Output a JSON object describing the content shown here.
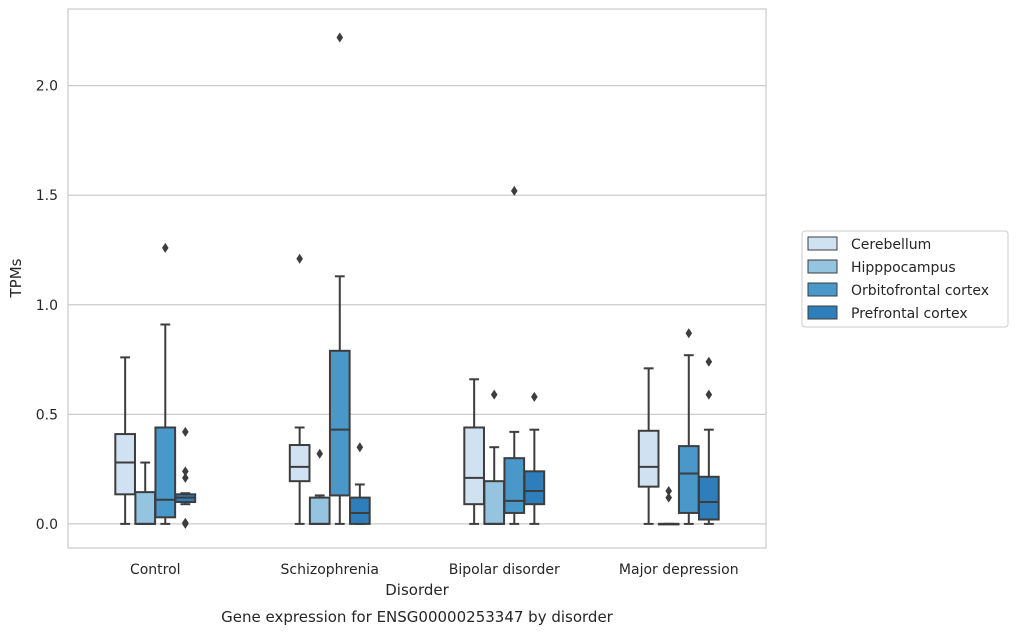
{
  "chart_data": {
    "type": "box",
    "caption": "Gene expression for ENSG00000253347 by disorder",
    "xlabel": "Disorder",
    "ylabel": "TPMs",
    "ylim": [
      -0.11,
      2.35
    ],
    "yticks": [
      "0.0",
      "0.5",
      "1.0",
      "1.5",
      "2.0"
    ],
    "grid": "horizontal",
    "legend_position": "right",
    "categories": [
      "Control",
      "Schizophrenia",
      "Bipolar disorder",
      "Major depression"
    ],
    "series": [
      {
        "name": "Cerebellum",
        "color": "#d0e1f2",
        "boxes": [
          {
            "whisker_low": 0.0,
            "q1": 0.135,
            "median": 0.28,
            "q3": 0.41,
            "whisker_high": 0.76,
            "outliers": []
          },
          {
            "whisker_low": 0.0,
            "q1": 0.195,
            "median": 0.26,
            "q3": 0.36,
            "whisker_high": 0.44,
            "outliers": [
              1.21
            ]
          },
          {
            "whisker_low": 0.0,
            "q1": 0.09,
            "median": 0.21,
            "q3": 0.44,
            "whisker_high": 0.66,
            "outliers": []
          },
          {
            "whisker_low": 0.0,
            "q1": 0.17,
            "median": 0.26,
            "q3": 0.425,
            "whisker_high": 0.71,
            "outliers": []
          }
        ]
      },
      {
        "name": "Hipppocampus",
        "color": "#94c4df",
        "boxes": [
          {
            "whisker_low": 0.0,
            "q1": 0.0,
            "median": 0.0,
            "q3": 0.145,
            "whisker_high": 0.28,
            "outliers": []
          },
          {
            "whisker_low": 0.0,
            "q1": 0.0,
            "median": 0.0,
            "q3": 0.12,
            "whisker_high": 0.13,
            "outliers": [
              0.32
            ]
          },
          {
            "whisker_low": 0.0,
            "q1": 0.0,
            "median": 0.0,
            "q3": 0.195,
            "whisker_high": 0.35,
            "outliers": [
              0.59
            ]
          },
          {
            "whisker_low": 0.0,
            "q1": 0.0,
            "median": 0.0,
            "q3": 0.0,
            "whisker_high": 0.0,
            "outliers": [
              0.15,
              0.12
            ]
          }
        ]
      },
      {
        "name": "Orbitofrontal cortex",
        "color": "#4a98c9",
        "boxes": [
          {
            "whisker_low": 0.0,
            "q1": 0.03,
            "median": 0.11,
            "q3": 0.44,
            "whisker_high": 0.91,
            "outliers": [
              1.26
            ]
          },
          {
            "whisker_low": 0.0,
            "q1": 0.13,
            "median": 0.43,
            "q3": 0.79,
            "whisker_high": 1.13,
            "outliers": [
              2.22
            ]
          },
          {
            "whisker_low": 0.0,
            "q1": 0.05,
            "median": 0.105,
            "q3": 0.3,
            "whisker_high": 0.42,
            "outliers": [
              1.52
            ]
          },
          {
            "whisker_low": 0.0,
            "q1": 0.05,
            "median": 0.23,
            "q3": 0.355,
            "whisker_high": 0.77,
            "outliers": [
              0.87
            ]
          }
        ]
      },
      {
        "name": "Prefrontal cortex",
        "color": "#2e7ebc",
        "boxes": [
          {
            "whisker_low": 0.09,
            "q1": 0.1,
            "median": 0.12,
            "q3": 0.135,
            "whisker_high": 0.14,
            "outliers": [
              0.42,
              0.24,
              0.21,
              0.005,
              0.0
            ]
          },
          {
            "whisker_low": 0.0,
            "q1": 0.0,
            "median": 0.05,
            "q3": 0.12,
            "whisker_high": 0.18,
            "outliers": [
              0.35
            ]
          },
          {
            "whisker_low": 0.0,
            "q1": 0.09,
            "median": 0.15,
            "q3": 0.24,
            "whisker_high": 0.43,
            "outliers": [
              0.58
            ]
          },
          {
            "whisker_low": 0.0,
            "q1": 0.02,
            "median": 0.1,
            "q3": 0.215,
            "whisker_high": 0.43,
            "outliers": [
              0.74,
              0.59
            ]
          }
        ]
      }
    ]
  }
}
